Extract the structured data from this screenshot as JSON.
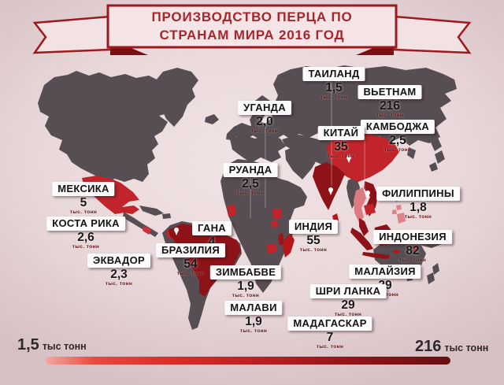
{
  "title": {
    "line1": "ПРОИЗВОДСТВО ПЕРЦА ПО",
    "line2": "СТРАНАМ МИРА 2016 ГОД"
  },
  "map": {
    "countries": [
      {
        "id": "thailand",
        "name": "ТАИЛАНД",
        "value": "1,5",
        "unit": "тыс. тонн"
      },
      {
        "id": "vietnam",
        "name": "ВЬЕТНАМ",
        "value": "216",
        "unit": "тыс. тонн"
      },
      {
        "id": "uganda",
        "name": "УГАНДА",
        "value": "2,0",
        "unit": "тыс. тонн"
      },
      {
        "id": "cambodia",
        "name": "КАМБОДЖА",
        "value": "2,5",
        "unit": "тыс. тонн"
      },
      {
        "id": "china",
        "name": "КИТАЙ",
        "value": "35",
        "unit": "тыс. тонн"
      },
      {
        "id": "rwanda",
        "name": "РУАНДА",
        "value": "2,5",
        "unit": "тыс. тонн"
      },
      {
        "id": "mexico",
        "name": "МЕКСИКА",
        "value": "5",
        "unit": "тыс. тонн"
      },
      {
        "id": "philippines",
        "name": "ФИЛИППИНЫ",
        "value": "1,8",
        "unit": "тыс. тонн"
      },
      {
        "id": "costa-rica",
        "name": "КОСТА РИКА",
        "value": "2,6",
        "unit": "тыс. тонн"
      },
      {
        "id": "ghana",
        "name": "ГАНА",
        "value": "4",
        "unit": "тыс. тонн"
      },
      {
        "id": "india",
        "name": "ИНДИЯ",
        "value": "55",
        "unit": "тыс. тонн"
      },
      {
        "id": "indonesia",
        "name": "ИНДОНЕЗИЯ",
        "value": "82",
        "unit": "тыс. тонн"
      },
      {
        "id": "brazil",
        "name": "БРАЗИЛИЯ",
        "value": "54",
        "unit": "тыс. тонн"
      },
      {
        "id": "ecuador",
        "name": "ЭКВАДОР",
        "value": "2,3",
        "unit": "тыс. тонн"
      },
      {
        "id": "zimbabwe",
        "name": "ЗИМБАБВЕ",
        "value": "1,9",
        "unit": "тыс. тонн"
      },
      {
        "id": "malaysia",
        "name": "МАЛАЙЗИЯ",
        "value": "29",
        "unit": "тыс. тонн"
      },
      {
        "id": "sri-lanka",
        "name": "ШРИ ЛАНКА",
        "value": "29",
        "unit": "тыс. тонн"
      },
      {
        "id": "malawi",
        "name": "МАЛАВИ",
        "value": "1,9",
        "unit": "тыс. тонн"
      },
      {
        "id": "madagascar",
        "name": "МАДАГАСКАР",
        "value": "7",
        "unit": "тыс. тонн"
      }
    ]
  },
  "legend": {
    "min_value": "1,5",
    "min_unit": "тыс тонн",
    "max_value": "216",
    "max_unit": "тыс тонн"
  },
  "colors": {
    "background": "#e9d8da",
    "land": "#574e53",
    "red_bright": "#c2242b",
    "red_dark": "#8e1318",
    "red_light": "#d97b80",
    "ribbon_fill": "#f5e5e7",
    "ribbon_border": "#9c1a1f",
    "ribbon_fold": "#7a0f13",
    "title_text": "#a6262c",
    "scale_gradient_start": "#f2a8a2",
    "scale_gradient_end": "#671013"
  },
  "chart_data": {
    "type": "heatmap",
    "title": "ПРОИЗВОДСТВО ПЕРЦА ПО СТРАНАМ МИРА 2016 ГОД",
    "unit": "тыс тонн",
    "categories": [
      "ТАИЛАНД",
      "ВЬЕТНАМ",
      "УГАНДА",
      "КАМБОДЖА",
      "КИТАЙ",
      "РУАНДА",
      "МЕКСИКА",
      "ФИЛИППИНЫ",
      "КОСТА РИКА",
      "ГАНА",
      "ИНДИЯ",
      "ИНДОНЕЗИЯ",
      "БРАЗИЛИЯ",
      "ЭКВАДОР",
      "ЗИМБАБВЕ",
      "МАЛАЙЗИЯ",
      "ШРИ ЛАНКА",
      "МАЛАВИ",
      "МАДАГАСКАР"
    ],
    "values": [
      1.5,
      216,
      2.0,
      2.5,
      35,
      2.5,
      5,
      1.8,
      2.6,
      4,
      55,
      82,
      54,
      2.3,
      1.9,
      29,
      29,
      1.9,
      7
    ],
    "range": [
      1.5,
      216
    ],
    "legend_position": "bottom"
  }
}
